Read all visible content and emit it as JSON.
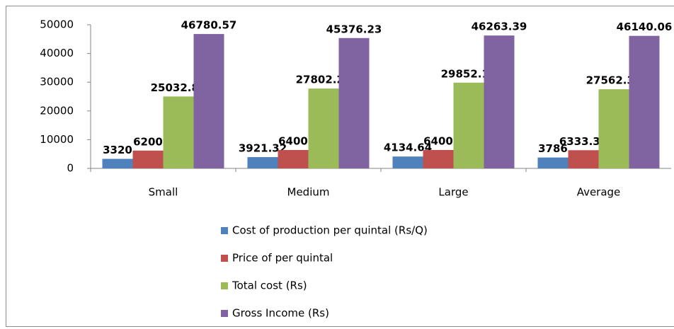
{
  "chart_data": {
    "type": "bar",
    "categories": [
      "Small",
      "Medium",
      "Large",
      "Average"
    ],
    "series": [
      {
        "name": "Cost of production per quintal (Rs/Q)",
        "color": "#4f81bd",
        "values": [
          3320,
          3921.32,
          4134.64,
          3786
        ]
      },
      {
        "name": "Price of per quintal",
        "color": "#c0504d",
        "values": [
          6200,
          6400,
          6400,
          6333.33
        ]
      },
      {
        "name": "Total cost (Rs)",
        "color": "#9bbb59",
        "values": [
          25032.81,
          27802.22,
          29852.13,
          27562.38
        ]
      },
      {
        "name": "Gross Income (Rs)",
        "color": "#8064a2",
        "values": [
          46780.57,
          45376.23,
          46263.39,
          46140.06
        ]
      }
    ],
    "ylim": [
      0,
      50000
    ],
    "yticks": [
      0,
      10000,
      20000,
      30000,
      40000,
      50000
    ],
    "legend": "bottom",
    "grid": false
  }
}
